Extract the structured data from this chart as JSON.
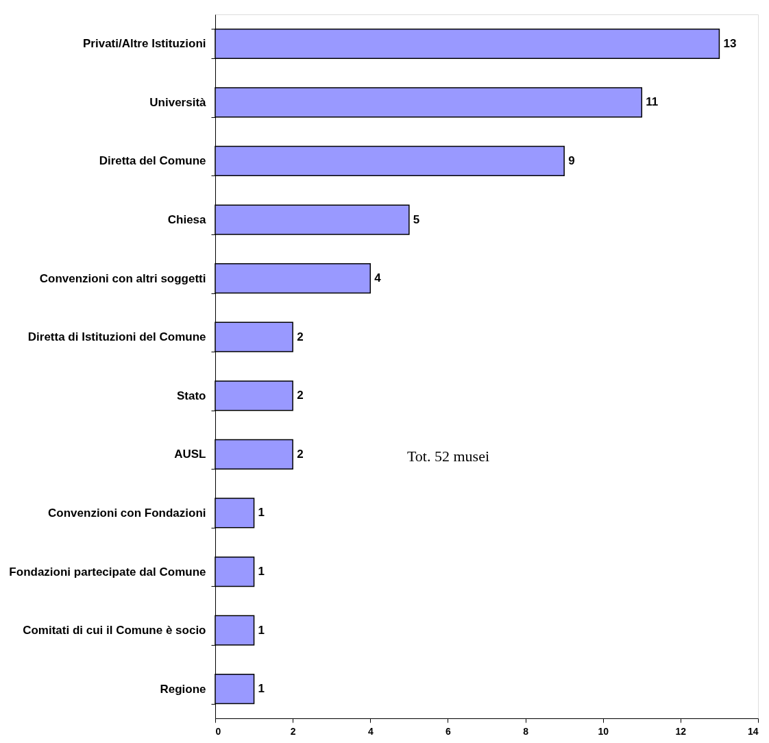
{
  "chart_data": {
    "type": "bar",
    "orientation": "horizontal",
    "categories": [
      "Privati/Altre Istituzioni",
      "Università",
      "Diretta del Comune",
      "Chiesa",
      "Convenzioni con altri soggetti",
      "Diretta di Istituzioni del Comune",
      "Stato",
      "AUSL",
      "Convenzioni con Fondazioni",
      "Fondazioni partecipate dal Comune",
      "Comitati di cui il Comune è socio",
      "Regione"
    ],
    "values": [
      13,
      11,
      9,
      5,
      4,
      2,
      2,
      2,
      1,
      1,
      1,
      1
    ],
    "color": "#9999ff",
    "xlim": [
      0,
      14
    ],
    "xticks": [
      0,
      2,
      4,
      6,
      8,
      10,
      12,
      14
    ],
    "data_labels": true,
    "grid": false,
    "annotations": [
      "Tot. 52 musei"
    ]
  }
}
